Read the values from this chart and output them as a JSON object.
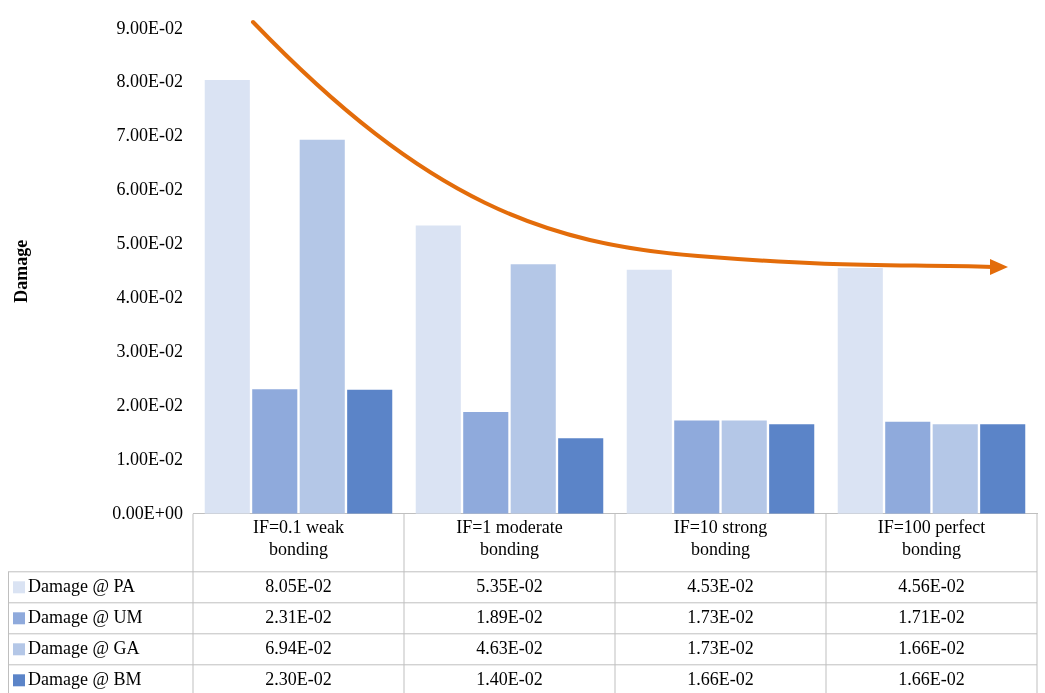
{
  "chart_data": {
    "type": "bar",
    "ylabel": "Damage",
    "categories": [
      "IF=0.1 weak bonding",
      "IF=1 moderate bonding",
      "IF=10 strong bonding",
      "IF=100 perfect bonding"
    ],
    "series": [
      {
        "name": "Damage @ PA",
        "color": "#dae3f3",
        "values": [
          0.0805,
          0.0535,
          0.0453,
          0.0456
        ],
        "value_labels": [
          "8.05E-02",
          "5.35E-02",
          "4.53E-02",
          "4.56E-02"
        ]
      },
      {
        "name": "Damage @ UM",
        "color": "#8faadc",
        "values": [
          0.0231,
          0.0189,
          0.0173,
          0.0171
        ],
        "value_labels": [
          "2.31E-02",
          "1.89E-02",
          "1.73E-02",
          "1.71E-02"
        ]
      },
      {
        "name": "Damage @ GA",
        "color": "#b4c7e7",
        "values": [
          0.0694,
          0.0463,
          0.0173,
          0.0166
        ],
        "value_labels": [
          "6.94E-02",
          "4.63E-02",
          "1.73E-02",
          "1.66E-02"
        ]
      },
      {
        "name": "Damage @ BM",
        "color": "#5b84c8",
        "values": [
          0.023,
          0.014,
          0.0166,
          0.0166
        ],
        "value_labels": [
          "2.30E-02",
          "1.40E-02",
          "1.66E-02",
          "1.66E-02"
        ]
      }
    ],
    "ylim": [
      0,
      0.09
    ],
    "yticks": [
      {
        "value": 0,
        "label": "0.00E+00"
      },
      {
        "value": 0.01,
        "label": "1.00E-02"
      },
      {
        "value": 0.02,
        "label": "2.00E-02"
      },
      {
        "value": 0.03,
        "label": "3.00E-02"
      },
      {
        "value": 0.04,
        "label": "4.00E-02"
      },
      {
        "value": 0.05,
        "label": "5.00E-02"
      },
      {
        "value": 0.06,
        "label": "6.00E-02"
      },
      {
        "value": 0.07,
        "label": "7.00E-02"
      },
      {
        "value": 0.08,
        "label": "8.00E-02"
      },
      {
        "value": 0.09,
        "label": "9.00E-02"
      }
    ],
    "grid": false,
    "legend": "bottom"
  }
}
